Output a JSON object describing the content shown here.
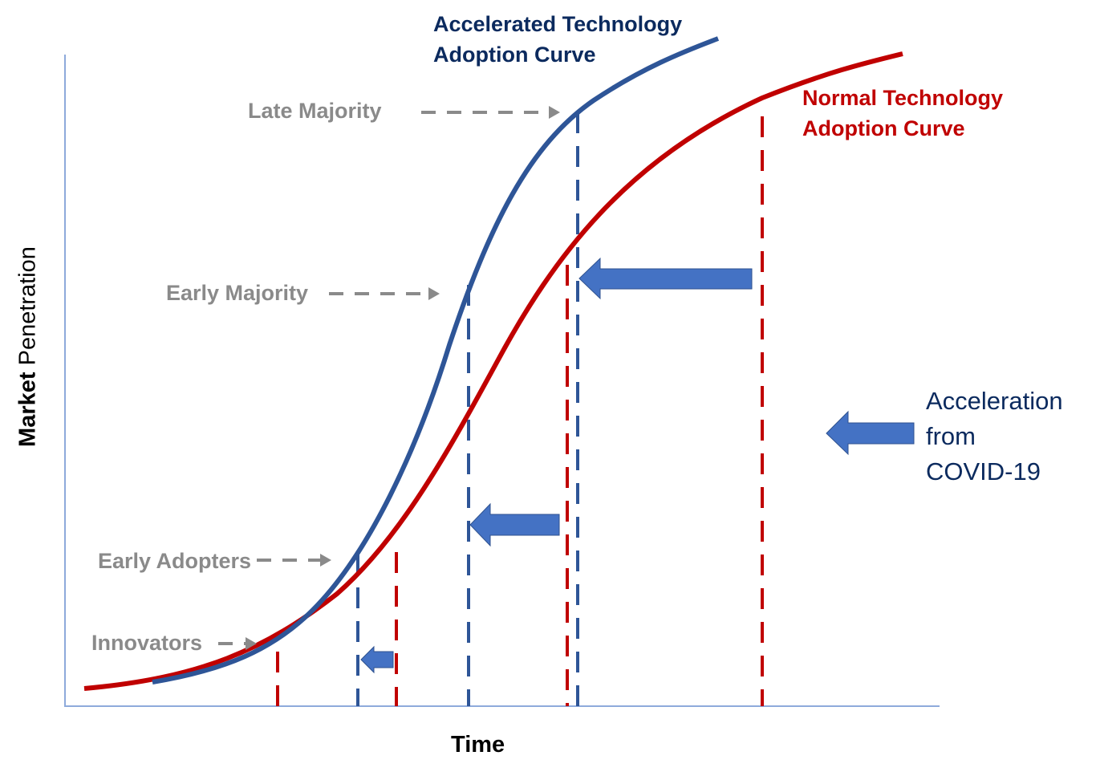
{
  "title_accelerated": [
    "Accelerated Technology",
    "Adoption Curve"
  ],
  "title_normal": [
    "Normal Technology",
    "Adoption Curve"
  ],
  "stages": {
    "late_majority": "Late Majority",
    "early_majority": "Early Majority",
    "early_adopters": "Early Adopters",
    "innovators": "Innovators"
  },
  "legend": [
    "Acceleration",
    "from",
    "COVID-19"
  ],
  "axes": {
    "x_label": "Time",
    "y_label_bold": "Market",
    "y_label_rest": " Penetration"
  },
  "colors": {
    "accelerated": "#2e5597",
    "normal": "#c00000",
    "arrow": "#4472c4",
    "guide": "#8a8a8a",
    "axis": "#8eaadb"
  }
}
